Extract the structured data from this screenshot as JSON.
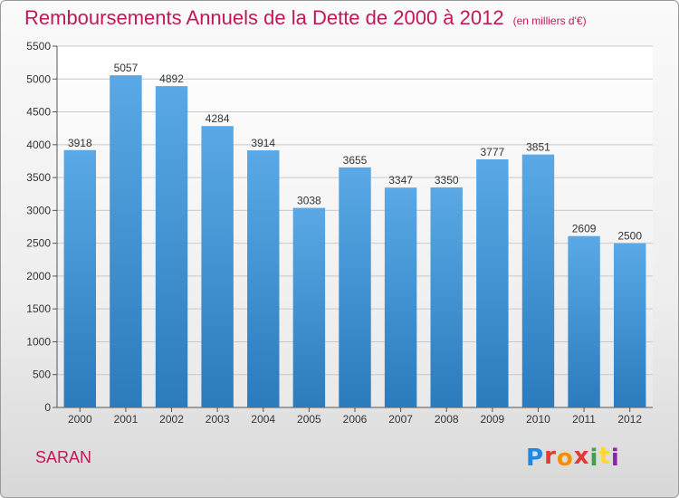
{
  "chart_data": {
    "type": "bar",
    "title": "Remboursements Annuels de la Dette de 2000 à 2012",
    "subtitle": "(en milliers d'€)",
    "categories": [
      "2000",
      "2001",
      "2002",
      "2003",
      "2004",
      "2005",
      "2006",
      "2007",
      "2008",
      "2009",
      "2010",
      "2011",
      "2012"
    ],
    "values": [
      3918,
      5057,
      4892,
      4284,
      3914,
      3038,
      3655,
      3347,
      3350,
      3777,
      3851,
      2609,
      2500
    ],
    "ylim": [
      0,
      5500
    ],
    "yticks": [
      0,
      500,
      1000,
      1500,
      2000,
      2500,
      3000,
      3500,
      4000,
      4500,
      5000,
      5500
    ],
    "grid": true,
    "bar_color_top": "#5aa9e6",
    "bar_color_bottom": "#2b7bbd"
  },
  "footer": {
    "city": "SARAN",
    "logo_letters": [
      "P",
      "r",
      "o",
      "x",
      "i",
      "t",
      "i"
    ],
    "logo_colors": [
      "#1e88e5",
      "#e53935",
      "#fb8c00",
      "#e53935",
      "#43a047",
      "#fdd835",
      "#8e24aa"
    ]
  }
}
